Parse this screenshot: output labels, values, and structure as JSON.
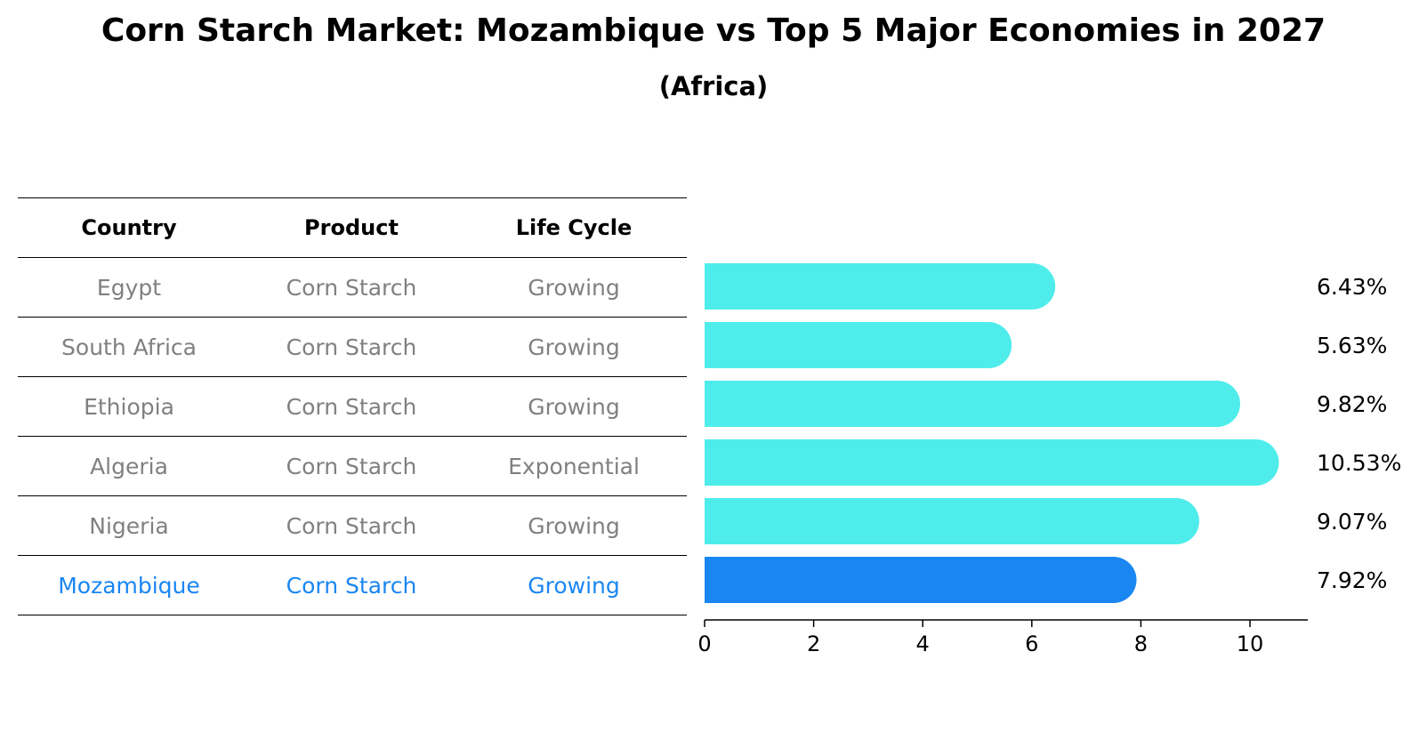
{
  "chart_data": {
    "type": "bar",
    "title": "Corn Starch Market: Mozambique vs Top 5 Major Economies in 2027",
    "subtitle": "(Africa)",
    "table": {
      "columns": [
        "Country",
        "Product",
        "Life Cycle"
      ],
      "rows": [
        {
          "country": "Egypt",
          "product": "Corn Starch",
          "life_cycle": "Growing"
        },
        {
          "country": "South Africa",
          "product": "Corn Starch",
          "life_cycle": "Growing"
        },
        {
          "country": "Ethiopia",
          "product": "Corn Starch",
          "life_cycle": "Growing"
        },
        {
          "country": "Algeria",
          "product": "Corn Starch",
          "life_cycle": "Exponential"
        },
        {
          "country": "Nigeria",
          "product": "Corn Starch",
          "life_cycle": "Growing"
        },
        {
          "country": "Mozambique",
          "product": "Corn Starch",
          "life_cycle": "Growing"
        }
      ]
    },
    "categories": [
      "Egypt",
      "South Africa",
      "Ethiopia",
      "Algeria",
      "Nigeria",
      "Mozambique"
    ],
    "values": [
      6.43,
      5.63,
      9.82,
      10.53,
      9.07,
      7.92
    ],
    "value_labels": [
      "6.43%",
      "5.63%",
      "9.82%",
      "10.53%",
      "9.07%",
      "7.92%"
    ],
    "highlight": "Mozambique",
    "x_ticks": [
      0,
      2,
      4,
      6,
      8,
      10
    ],
    "xlim": [
      0,
      11.06
    ],
    "orientation": "horizontal",
    "colors": {
      "bar": "#4EEDEB",
      "highlight_bar": "#1A86F2",
      "highlight_text": "#1A86F2",
      "muted_text": "#808080"
    }
  }
}
